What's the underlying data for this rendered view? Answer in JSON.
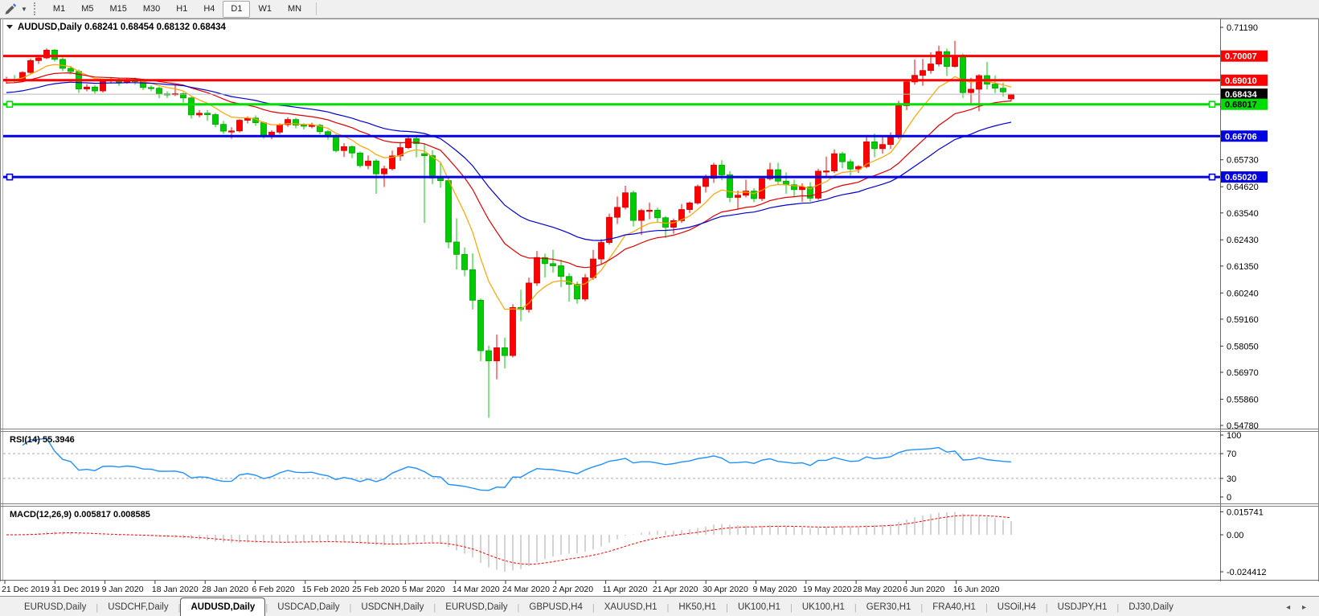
{
  "toolbar": {
    "style_tool": "pencil-tool",
    "dropdown": "▼",
    "timeframes": [
      "M1",
      "M5",
      "M15",
      "M30",
      "H1",
      "H4",
      "D1",
      "W1",
      "MN"
    ],
    "active_timeframe": "D1"
  },
  "chart_data": {
    "type": "candlestick",
    "symbol": "AUDUSD",
    "timeframe": "Daily",
    "title": {
      "symbol_period": "AUDUSD,Daily",
      "open": "0.68241",
      "high": "0.68454",
      "low": "0.68132",
      "close": "0.68434"
    },
    "colors": {
      "up_candle": "#FF0000",
      "up_stroke": "#CC0000",
      "down_candle": "#00CC00",
      "down_stroke": "#00A000",
      "ma_fast": "#FFA500",
      "ma_mid": "#DD0000",
      "ma_slow": "#0000CC",
      "current_price_line": "#B8B8B8",
      "current_price_chip": "#000000",
      "rsi_line": "#1E90FF",
      "macd_histogram": "#AAAAAA",
      "macd_signal": "#FF0000"
    },
    "y_range": [
      0.5478,
      0.7119
    ],
    "y_ticks": [
      "0.71190",
      "0.67920",
      "0.65730",
      "0.64620",
      "0.63540",
      "0.62430",
      "0.61350",
      "0.60240",
      "0.59160",
      "0.58050",
      "0.56970",
      "0.55860",
      "0.54780"
    ],
    "x_labels": [
      "21 Dec 2019",
      "31 Dec 2019",
      "9 Jan 2020",
      "18 Jan 2020",
      "28 Jan 2020",
      "6 Feb 2020",
      "15 Feb 2020",
      "25 Feb 2020",
      "5 Mar 2020",
      "14 Mar 2020",
      "24 Mar 2020",
      "2 Apr 2020",
      "11 Apr 2020",
      "21 Apr 2020",
      "30 Apr 2020",
      "9 May 2020",
      "19 May 2020",
      "28 May 2020",
      "6 Jun 2020",
      "16 Jun 2020"
    ],
    "current_price": "0.68434",
    "hlines": [
      {
        "value": 0.70007,
        "label": "0.70007",
        "color": "#FF0000",
        "text_color": "#FFFFFF",
        "selected": false
      },
      {
        "value": 0.6901,
        "label": "0.69010",
        "color": "#FF0000",
        "text_color": "#FFFFFF",
        "selected": false
      },
      {
        "value": 0.68017,
        "label": "0.68017",
        "color": "#00DD00",
        "text_color": "#000000",
        "selected": true
      },
      {
        "value": 0.66706,
        "label": "0.66706",
        "color": "#0000E0",
        "text_color": "#FFFFFF",
        "selected": false
      },
      {
        "value": 0.6502,
        "label": "0.65020",
        "color": "#0000E0",
        "text_color": "#FFFFFF",
        "selected": true
      }
    ],
    "moving_averages": [
      {
        "name": "fast",
        "period": 8,
        "color": "#FFA500"
      },
      {
        "name": "mid",
        "period": 20,
        "color": "#DD0000"
      },
      {
        "name": "slow",
        "period": 34,
        "color": "#0000CC"
      }
    ],
    "ohlc": [
      [
        0.6901,
        0.6915,
        0.6886,
        0.6905
      ],
      [
        0.6905,
        0.6922,
        0.689,
        0.6898
      ],
      [
        0.6898,
        0.6938,
        0.6893,
        0.6933
      ],
      [
        0.6933,
        0.699,
        0.6928,
        0.6982
      ],
      [
        0.6982,
        0.7002,
        0.6968,
        0.6993
      ],
      [
        0.6993,
        0.7032,
        0.6988,
        0.7025
      ],
      [
        0.7025,
        0.703,
        0.6978,
        0.6987
      ],
      [
        0.6987,
        0.6995,
        0.6938,
        0.695
      ],
      [
        0.695,
        0.696,
        0.6925,
        0.6937
      ],
      [
        0.6937,
        0.6945,
        0.6849,
        0.6865
      ],
      [
        0.6865,
        0.6885,
        0.6855,
        0.6873
      ],
      [
        0.6873,
        0.688,
        0.6846,
        0.6857
      ],
      [
        0.6857,
        0.6905,
        0.685,
        0.69
      ],
      [
        0.69,
        0.6912,
        0.6888,
        0.6903
      ],
      [
        0.6903,
        0.691,
        0.6878,
        0.6893
      ],
      [
        0.6893,
        0.691,
        0.6886,
        0.6904
      ],
      [
        0.6904,
        0.6912,
        0.6883,
        0.6895
      ],
      [
        0.6895,
        0.69,
        0.686,
        0.6871
      ],
      [
        0.6871,
        0.688,
        0.6856,
        0.6868
      ],
      [
        0.6868,
        0.6875,
        0.6827,
        0.6845
      ],
      [
        0.6845,
        0.6855,
        0.6828,
        0.6844
      ],
      [
        0.6844,
        0.688,
        0.6836,
        0.6846
      ],
      [
        0.6846,
        0.6852,
        0.6808,
        0.6828
      ],
      [
        0.6828,
        0.6832,
        0.6743,
        0.6758
      ],
      [
        0.6758,
        0.6777,
        0.6748,
        0.6765
      ],
      [
        0.6765,
        0.6778,
        0.6733,
        0.6759
      ],
      [
        0.6759,
        0.6766,
        0.6707,
        0.6719
      ],
      [
        0.6719,
        0.6733,
        0.668,
        0.6691
      ],
      [
        0.6691,
        0.6707,
        0.666,
        0.6692
      ],
      [
        0.6692,
        0.674,
        0.6686,
        0.6736
      ],
      [
        0.6736,
        0.6752,
        0.6723,
        0.6745
      ],
      [
        0.6745,
        0.6756,
        0.6713,
        0.6726
      ],
      [
        0.6726,
        0.6731,
        0.666,
        0.6673
      ],
      [
        0.6673,
        0.6695,
        0.6658,
        0.6687
      ],
      [
        0.6687,
        0.6723,
        0.6679,
        0.6718
      ],
      [
        0.6718,
        0.6748,
        0.6709,
        0.6739
      ],
      [
        0.6739,
        0.6746,
        0.6703,
        0.6716
      ],
      [
        0.6716,
        0.6724,
        0.6698,
        0.6712
      ],
      [
        0.6712,
        0.6726,
        0.6703,
        0.6715
      ],
      [
        0.6715,
        0.6721,
        0.6678,
        0.6689
      ],
      [
        0.6689,
        0.6696,
        0.6656,
        0.6671
      ],
      [
        0.6671,
        0.6678,
        0.6603,
        0.6611
      ],
      [
        0.6611,
        0.6641,
        0.6585,
        0.6627
      ],
      [
        0.6627,
        0.6633,
        0.658,
        0.6601
      ],
      [
        0.6601,
        0.6607,
        0.654,
        0.6549
      ],
      [
        0.6549,
        0.6591,
        0.6534,
        0.6568
      ],
      [
        0.6568,
        0.6576,
        0.6433,
        0.6515
      ],
      [
        0.6515,
        0.6549,
        0.6461,
        0.6536
      ],
      [
        0.6536,
        0.6611,
        0.6529,
        0.6589
      ],
      [
        0.6589,
        0.6646,
        0.6569,
        0.6623
      ],
      [
        0.6623,
        0.6669,
        0.6617,
        0.666
      ],
      [
        0.666,
        0.6671,
        0.6583,
        0.664
      ],
      [
        0.6598,
        0.6641,
        0.6313,
        0.659
      ],
      [
        0.659,
        0.6612,
        0.6473,
        0.6498
      ],
      [
        0.6498,
        0.6562,
        0.6458,
        0.6487
      ],
      [
        0.6487,
        0.6497,
        0.6208,
        0.6234
      ],
      [
        0.6234,
        0.6332,
        0.6121,
        0.6183
      ],
      [
        0.6183,
        0.6212,
        0.6093,
        0.612
      ],
      [
        0.612,
        0.6187,
        0.5956,
        0.5994
      ],
      [
        0.5994,
        0.6001,
        0.5743,
        0.5786
      ],
      [
        0.5786,
        0.5807,
        0.551,
        0.5744
      ],
      [
        0.5744,
        0.5852,
        0.5668,
        0.5798
      ],
      [
        0.5798,
        0.584,
        0.5713,
        0.5766
      ],
      [
        0.5766,
        0.5977,
        0.5758,
        0.5964
      ],
      [
        0.5964,
        0.6037,
        0.5908,
        0.5956
      ],
      [
        0.5956,
        0.6087,
        0.5943,
        0.6065
      ],
      [
        0.6065,
        0.6197,
        0.6053,
        0.617
      ],
      [
        0.617,
        0.6186,
        0.6088,
        0.6145
      ],
      [
        0.6145,
        0.6202,
        0.6108,
        0.6136
      ],
      [
        0.6136,
        0.6161,
        0.6048,
        0.6092
      ],
      [
        0.6092,
        0.6106,
        0.5988,
        0.606
      ],
      [
        0.606,
        0.6071,
        0.598,
        0.5999
      ],
      [
        0.5999,
        0.6102,
        0.599,
        0.6087
      ],
      [
        0.6087,
        0.6201,
        0.6078,
        0.6164
      ],
      [
        0.6164,
        0.6246,
        0.6143,
        0.6232
      ],
      [
        0.6232,
        0.6351,
        0.6223,
        0.6336
      ],
      [
        0.6336,
        0.6421,
        0.6308,
        0.6377
      ],
      [
        0.6377,
        0.6466,
        0.6368,
        0.6437
      ],
      [
        0.6437,
        0.6446,
        0.6298,
        0.6323
      ],
      [
        0.6323,
        0.6371,
        0.6263,
        0.6364
      ],
      [
        0.6364,
        0.6396,
        0.6328,
        0.6365
      ],
      [
        0.6365,
        0.6376,
        0.6318,
        0.6334
      ],
      [
        0.6334,
        0.6341,
        0.6251,
        0.6295
      ],
      [
        0.6295,
        0.6331,
        0.6268,
        0.6322
      ],
      [
        0.6322,
        0.6391,
        0.6313,
        0.6368
      ],
      [
        0.6368,
        0.6401,
        0.6353,
        0.6395
      ],
      [
        0.6395,
        0.6471,
        0.6388,
        0.6463
      ],
      [
        0.6463,
        0.6512,
        0.6438,
        0.6497
      ],
      [
        0.6497,
        0.6561,
        0.6478,
        0.6551
      ],
      [
        0.6551,
        0.6571,
        0.6488,
        0.6511
      ],
      [
        0.6511,
        0.6526,
        0.6398,
        0.6418
      ],
      [
        0.6418,
        0.6446,
        0.637,
        0.6427
      ],
      [
        0.6427,
        0.6491,
        0.6418,
        0.6444
      ],
      [
        0.6444,
        0.6456,
        0.6398,
        0.6413
      ],
      [
        0.6413,
        0.6506,
        0.6403,
        0.6495
      ],
      [
        0.6495,
        0.6561,
        0.6488,
        0.6532
      ],
      [
        0.6532,
        0.6561,
        0.6468,
        0.6485
      ],
      [
        0.6485,
        0.6521,
        0.6433,
        0.647
      ],
      [
        0.647,
        0.6491,
        0.6418,
        0.645
      ],
      [
        0.645,
        0.6476,
        0.64,
        0.6461
      ],
      [
        0.6461,
        0.6481,
        0.64,
        0.6415
      ],
      [
        0.6415,
        0.6536,
        0.6408,
        0.6526
      ],
      [
        0.6526,
        0.6586,
        0.6503,
        0.6527
      ],
      [
        0.6527,
        0.6616,
        0.6518,
        0.6598
      ],
      [
        0.6598,
        0.6606,
        0.6538,
        0.6565
      ],
      [
        0.6565,
        0.6576,
        0.6508,
        0.6535
      ],
      [
        0.6535,
        0.6551,
        0.6518,
        0.6545
      ],
      [
        0.6545,
        0.6676,
        0.6538,
        0.6647
      ],
      [
        0.6647,
        0.6681,
        0.6583,
        0.6619
      ],
      [
        0.6619,
        0.6666,
        0.6598,
        0.6636
      ],
      [
        0.6636,
        0.6686,
        0.6618,
        0.6667
      ],
      [
        0.6667,
        0.6816,
        0.6658,
        0.6796
      ],
      [
        0.6796,
        0.6901,
        0.6778,
        0.6894
      ],
      [
        0.6894,
        0.6986,
        0.6883,
        0.6921
      ],
      [
        0.6921,
        0.6989,
        0.6878,
        0.6941
      ],
      [
        0.6941,
        0.7016,
        0.6928,
        0.6968
      ],
      [
        0.6968,
        0.7043,
        0.6958,
        0.7019
      ],
      [
        0.7019,
        0.7031,
        0.6918,
        0.6958
      ],
      [
        0.6958,
        0.7063,
        0.6953,
        0.6999
      ],
      [
        0.6999,
        0.7011,
        0.6828,
        0.685
      ],
      [
        0.685,
        0.6911,
        0.6798,
        0.6864
      ],
      [
        0.6864,
        0.6926,
        0.6773,
        0.692
      ],
      [
        0.692,
        0.6976,
        0.6863,
        0.6885
      ],
      [
        0.6885,
        0.6921,
        0.6848,
        0.6868
      ],
      [
        0.6868,
        0.6891,
        0.6833,
        0.6853
      ],
      [
        0.68241,
        0.68454,
        0.68132,
        0.68434
      ]
    ],
    "indicators": {
      "rsi": {
        "label": "RSI(14)",
        "value": "55.3946",
        "period": 14,
        "levels": [
          "100",
          "70",
          "30",
          "0"
        ],
        "dashed_levels": [
          70,
          30
        ]
      },
      "macd": {
        "label": "MACD(12,26,9)",
        "main_value": "0.005817",
        "signal_value": "0.008585",
        "fast": 12,
        "slow": 26,
        "signal": 9,
        "scale_top": "0.015741",
        "scale_zero": "0.00",
        "scale_bottom": "-0.024412"
      }
    }
  },
  "tabbar": {
    "tabs": [
      "EURUSD,Daily",
      "USDCHF,Daily",
      "AUDUSD,Daily",
      "USDCAD,Daily",
      "USDCNH,Daily",
      "EURUSD,Daily",
      "GBPUSD,H4",
      "XAUUSD,H1",
      "HK50,H1",
      "UK100,H1",
      "UK100,H1",
      "GER30,H1",
      "FRA40,H1",
      "USOil,H4",
      "USDJPY,H1",
      "DJ30,Daily"
    ],
    "active_index": 2,
    "arrow_left": "◂",
    "arrow_right": "▸"
  }
}
